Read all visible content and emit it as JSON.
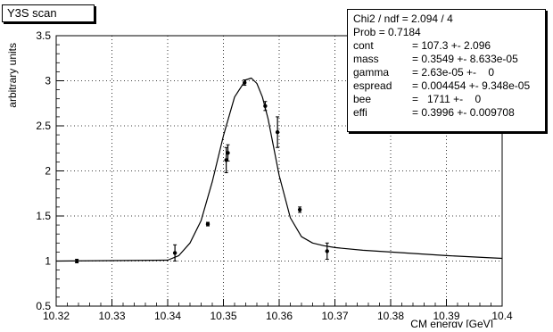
{
  "title": "Y3S scan",
  "stats": [
    {
      "name": "Chi2 / ndf",
      "value": "= 2.094 / 4"
    },
    {
      "name": "Prob",
      "value": "= 0.7184"
    },
    {
      "name": "cont",
      "value": "= 107.3 +- 2.096"
    },
    {
      "name": "mass",
      "value": "= 0.3549 +- 8.633e-05"
    },
    {
      "name": "gamma",
      "value": "= 2.63e-05 +-    0"
    },
    {
      "name": "espread",
      "value": "= 0.004454 +- 9.348e-05"
    },
    {
      "name": "bee",
      "value": "=   1711 +-    0"
    },
    {
      "name": "effi",
      "value": "= 0.3996 +- 0.009708"
    }
  ],
  "chart_data": {
    "type": "scatter",
    "title": "Y3S scan",
    "xlabel": "CM energy [GeV]",
    "ylabel": "arbitrary units",
    "xlim": [
      10.32,
      10.4
    ],
    "ylim": [
      0.5,
      3.5
    ],
    "xticks": [
      "10.32",
      "10.33",
      "10.34",
      "10.35",
      "10.36",
      "10.37",
      "10.38",
      "10.39",
      "10.4"
    ],
    "yticks": [
      "0.5",
      "1",
      "1.5",
      "2",
      "2.5",
      "3",
      "3.5"
    ],
    "grid": true,
    "series": [
      {
        "kind": "points-with-errors",
        "x": [
          10.3237,
          10.3413,
          10.3472,
          10.3505,
          10.3508,
          10.3538,
          10.3575,
          10.3597,
          10.3637,
          10.3686
        ],
        "y": [
          1.0,
          1.09,
          1.41,
          2.12,
          2.2,
          2.98,
          2.72,
          2.43,
          1.57,
          1.11
        ],
        "err": [
          0.02,
          0.09,
          0.02,
          0.14,
          0.09,
          0.03,
          0.05,
          0.17,
          0.03,
          0.09
        ]
      },
      {
        "kind": "fit-curve",
        "x": [
          10.32,
          10.34,
          10.342,
          10.344,
          10.346,
          10.348,
          10.35,
          10.352,
          10.354,
          10.355,
          10.356,
          10.357,
          10.358,
          10.36,
          10.362,
          10.364,
          10.366,
          10.368,
          10.37,
          10.375,
          10.38,
          10.385,
          10.39,
          10.4
        ],
        "y": [
          1.0,
          1.01,
          1.06,
          1.2,
          1.45,
          1.88,
          2.39,
          2.82,
          3.01,
          3.03,
          2.97,
          2.82,
          2.58,
          1.95,
          1.48,
          1.27,
          1.2,
          1.17,
          1.15,
          1.12,
          1.1,
          1.08,
          1.06,
          1.03
        ]
      }
    ]
  }
}
